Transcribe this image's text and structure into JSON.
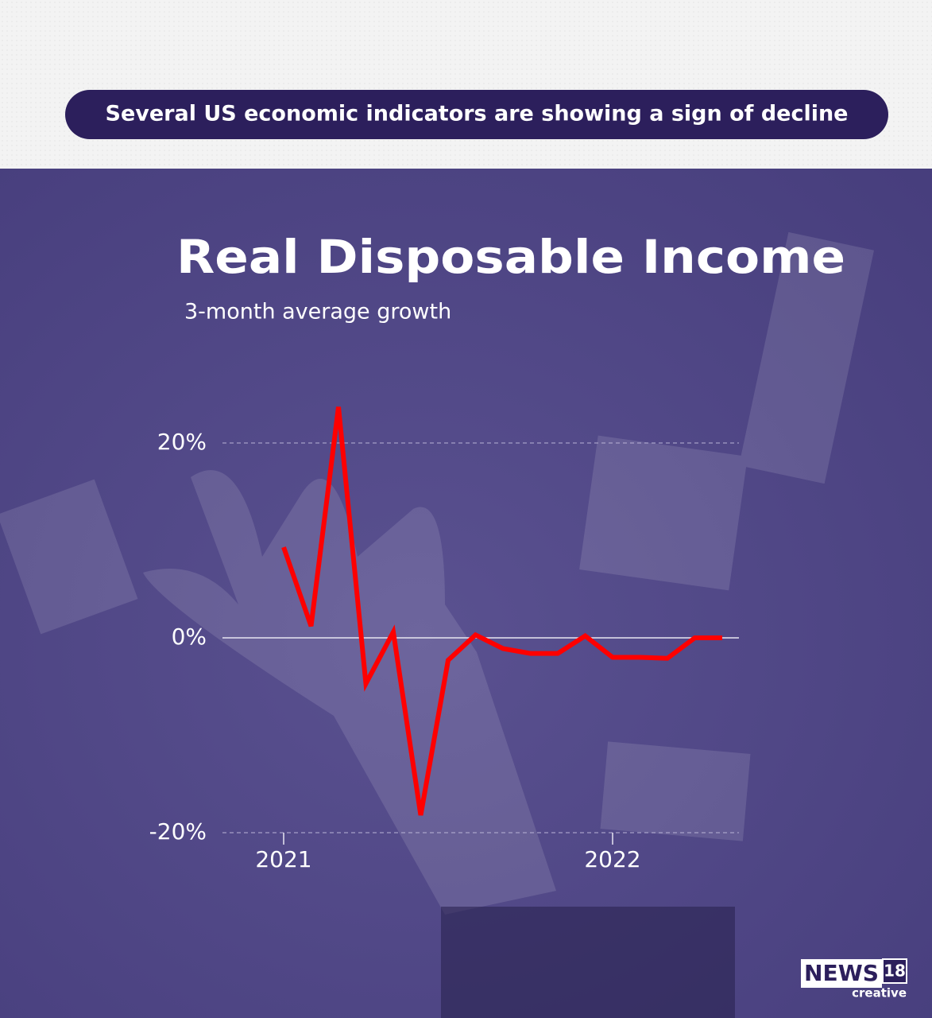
{
  "banner": "Several US economic indicators are showing a sign of decline",
  "chart_data": {
    "type": "line",
    "title": "Real Disposable Income",
    "subtitle": "3-month average growth",
    "categories": [
      "2021",
      null,
      null,
      null,
      null,
      null,
      null,
      null,
      null,
      null,
      null,
      null,
      "2022",
      null,
      null,
      null,
      null
    ],
    "series": [
      {
        "color": "#ff0000",
        "values": [
          9.3,
          1.2,
          23.7,
          -4.7,
          0.6,
          -18.2,
          -2.3,
          0.3,
          -1.1,
          -1.6,
          -1.6,
          0.2,
          -2.0,
          -2.0,
          -2.1,
          0,
          0
        ]
      }
    ],
    "ylim": [
      -20,
      20
    ],
    "yticks": [
      {
        "value": -20,
        "label": "-20%"
      },
      {
        "value": 0,
        "label": "0%"
      },
      {
        "value": 20,
        "label": "20%"
      }
    ],
    "grid": true
  },
  "logo": {
    "brand": "NEWS",
    "number": "18",
    "tagline": "creative"
  }
}
